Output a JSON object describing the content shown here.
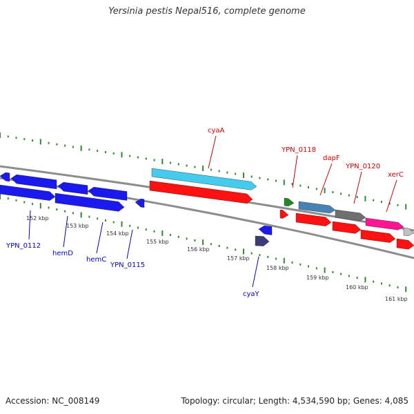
{
  "title": "Yersinia pestis Nepal516, complete genome",
  "footer": {
    "accession": "Accession: NC_008149",
    "stats": "Topology: circular; Length: 4,534,590 bp; Genes: 4,085"
  },
  "colors": {
    "tick": "#2e8b2e",
    "backbone": "#8c8c8c",
    "label_forward": "#cc0000",
    "label_reverse": "#0000cc",
    "gene_red": "#ff1111",
    "gene_blue": "#1a1aee",
    "gene_cyan": "#44ccee",
    "gene_green": "#228822",
    "gene_steelblue": "#4682b4",
    "gene_gray": "#707070",
    "gene_magenta": "#ff1493",
    "gene_lightgray": "#c0c0c0",
    "gene_navy": "#3b3b7a"
  },
  "ruler": {
    "labels": [
      "152 kbp",
      "153 kbp",
      "154 kbp",
      "155 kbp",
      "156 kbp",
      "157 kbp",
      "158 kbp",
      "159 kbp",
      "160 kbp",
      "161 kbp"
    ]
  },
  "gene_labels": {
    "forward": [
      "cyaA",
      "YPN_0118",
      "dapF",
      "YPN_0120",
      "xerC"
    ],
    "reverse": [
      "YPN_0112",
      "hemD",
      "hemC",
      "YPN_0115",
      "cyaY"
    ]
  }
}
